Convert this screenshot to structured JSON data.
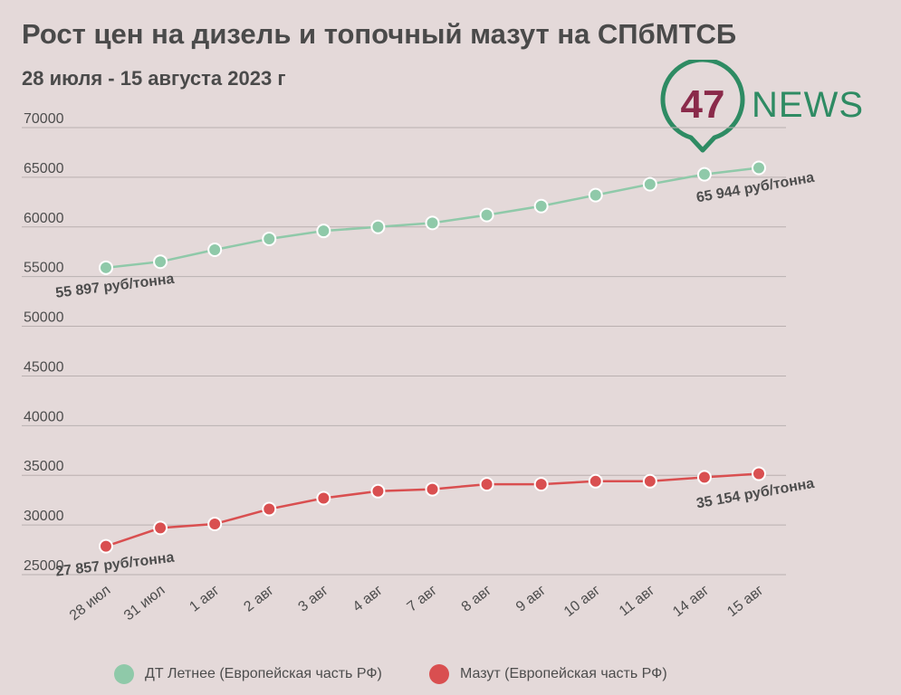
{
  "title": "Рост цен на дизель и топочный мазут на СПбМТСБ",
  "subtitle": "28 июля - 15 августа 2023 г",
  "logo": {
    "number": "47",
    "word": "NEWS",
    "color": "#2e8b63",
    "number_color": "#8a2a4a"
  },
  "colors": {
    "background": "#e4d9d9",
    "grid": "#b9b0b0",
    "text": "#4d4d4d"
  },
  "chart_data": {
    "type": "line",
    "categories": [
      "28 июл",
      "31 июл",
      "1 авг",
      "2 авг",
      "3 авг",
      "4 авг",
      "7 авг",
      "8 авг",
      "9 авг",
      "10 авг",
      "11 авг",
      "14 авг",
      "15 авг"
    ],
    "yticks": [
      "25000",
      "30000",
      "35000",
      "40000",
      "45000",
      "50000",
      "55000",
      "60000",
      "65000",
      "70000"
    ],
    "ylim": [
      25000,
      70000
    ],
    "grid": true,
    "legend_position": "bottom",
    "series": [
      {
        "name": "ДТ Летнее (Европейская часть РФ)",
        "color": "#8fc9a9",
        "values": [
          55897,
          56500,
          57700,
          58800,
          59600,
          60000,
          60400,
          61200,
          62100,
          63200,
          64300,
          65300,
          65944
        ]
      },
      {
        "name": "Мазут (Европейская часть РФ)",
        "color": "#d94f50",
        "values": [
          27857,
          29700,
          30100,
          31600,
          32700,
          33400,
          33600,
          34100,
          34100,
          34400,
          34400,
          34800,
          35154
        ]
      }
    ],
    "annotations": [
      {
        "series": 0,
        "index": 0,
        "text": "55 897 руб/тонна"
      },
      {
        "series": 0,
        "index": 12,
        "text": "65 944 руб/тонна"
      },
      {
        "series": 1,
        "index": 0,
        "text": "27 857 руб/тонна"
      },
      {
        "series": 1,
        "index": 12,
        "text": "35 154 руб/тонна"
      }
    ]
  }
}
